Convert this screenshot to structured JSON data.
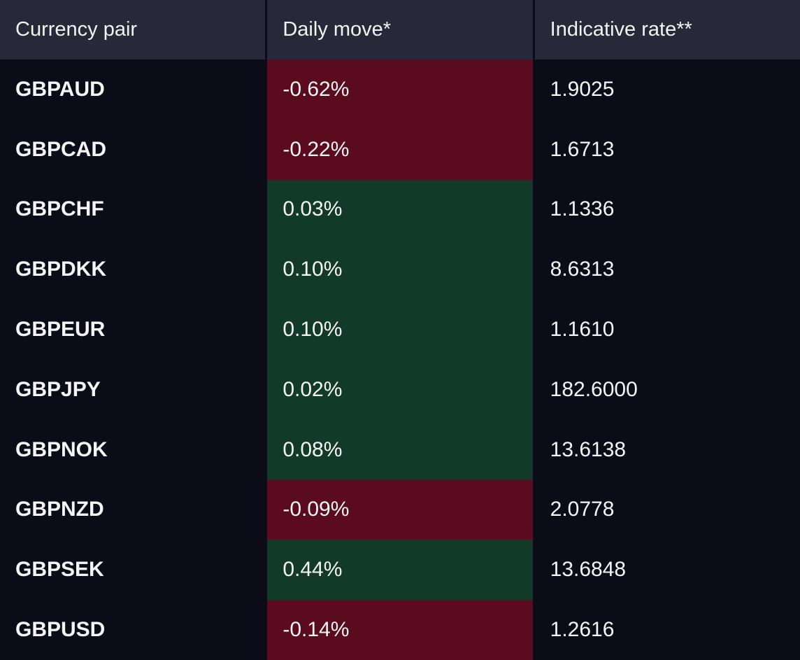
{
  "table": {
    "columns": [
      {
        "key": "pair",
        "label": "Currency pair"
      },
      {
        "key": "move",
        "label": "Daily move*"
      },
      {
        "key": "rate",
        "label": "Indicative rate**"
      }
    ],
    "rows": [
      {
        "pair": "GBPAUD",
        "move": "-0.62%",
        "rate": "1.9025",
        "direction": "negative"
      },
      {
        "pair": "GBPCAD",
        "move": "-0.22%",
        "rate": "1.6713",
        "direction": "negative"
      },
      {
        "pair": "GBPCHF",
        "move": "0.03%",
        "rate": "1.1336",
        "direction": "positive"
      },
      {
        "pair": "GBPDKK",
        "move": "0.10%",
        "rate": "8.6313",
        "direction": "positive"
      },
      {
        "pair": "GBPEUR",
        "move": "0.10%",
        "rate": "1.1610",
        "direction": "positive"
      },
      {
        "pair": "GBPJPY",
        "move": "0.02%",
        "rate": "182.6000",
        "direction": "positive"
      },
      {
        "pair": "GBPNOK",
        "move": "0.08%",
        "rate": "13.6138",
        "direction": "positive"
      },
      {
        "pair": "GBPNZD",
        "move": "-0.09%",
        "rate": "2.0778",
        "direction": "negative"
      },
      {
        "pair": "GBPSEK",
        "move": "0.44%",
        "rate": "13.6848",
        "direction": "positive"
      },
      {
        "pair": "GBPUSD",
        "move": "-0.14%",
        "rate": "1.2616",
        "direction": "negative"
      }
    ],
    "colors": {
      "body_bg": "#0c0c18",
      "header_bg": "#282838",
      "positive_bg": "#123a28",
      "negative_bg": "#5a0b1e",
      "text": "#f5f5f7"
    }
  }
}
